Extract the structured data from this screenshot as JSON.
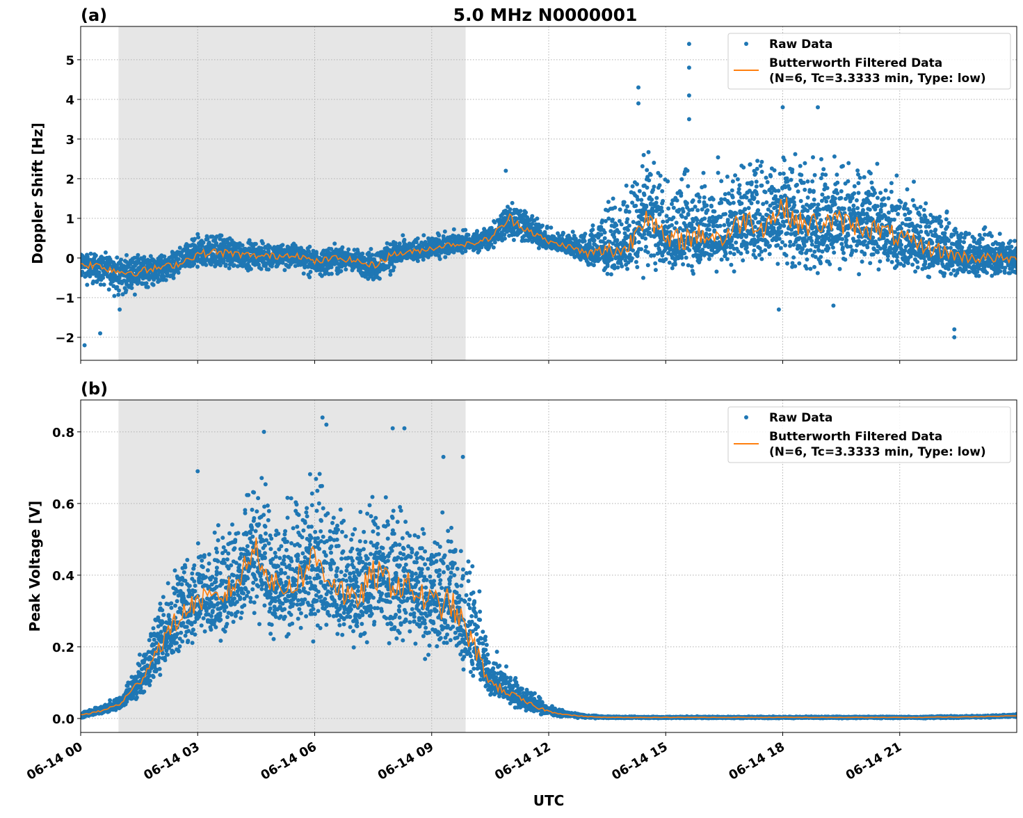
{
  "title": "5.0 MHz N0000001",
  "xlabel": "UTC",
  "colors": {
    "raw": "#1f77b4",
    "filtered": "#ff7f0e",
    "shade": "#e6e6e6",
    "grid": "#b0b0b0"
  },
  "chart_data": [
    {
      "type": "scatter+line",
      "panel_label": "(a)",
      "ylabel": "Doppler Shift [Hz]",
      "xlim_hours": [
        0,
        24
      ],
      "ylim": [
        -2.58,
        5.84
      ],
      "yticks": [
        -2,
        -1,
        0,
        1,
        2,
        3,
        4,
        5
      ],
      "ytick_labels": [
        "−2",
        "−1",
        "0",
        "1",
        "2",
        "3",
        "4",
        "5"
      ],
      "grid": true,
      "shaded_span_hours": [
        0.97,
        9.87
      ],
      "legend": {
        "placement": "top-right",
        "entries": [
          "Raw Data",
          "Butterworth Filtered Data\n(N=6, Tc=3.3333 min, Type: low)"
        ]
      },
      "x_hours": [
        0,
        0.5,
        1,
        1.5,
        2,
        2.5,
        3,
        3.5,
        4,
        4.5,
        5,
        5.5,
        6,
        6.5,
        7,
        7.5,
        8,
        8.5,
        9,
        9.5,
        10,
        10.5,
        11,
        11.5,
        12,
        12.5,
        13,
        13.5,
        14,
        14.5,
        15,
        15.5,
        16,
        16.5,
        17,
        17.5,
        18,
        18.5,
        19,
        19.5,
        20,
        20.5,
        21,
        21.5,
        22,
        22.5,
        23,
        23.5,
        24
      ],
      "series": [
        {
          "name": "Butterworth Filtered Data",
          "style": "line",
          "values": [
            -0.15,
            -0.2,
            -0.35,
            -0.35,
            -0.25,
            -0.15,
            0.1,
            0.15,
            0.1,
            0.05,
            0.05,
            0.1,
            -0.1,
            0.0,
            -0.05,
            -0.2,
            0.1,
            0.15,
            0.25,
            0.35,
            0.35,
            0.5,
            1.0,
            0.7,
            0.4,
            0.3,
            0.1,
            0.2,
            0.2,
            1.2,
            0.4,
            0.5,
            0.6,
            0.5,
            1.0,
            0.8,
            1.3,
            0.8,
            0.9,
            0.9,
            0.8,
            0.7,
            0.5,
            0.3,
            0.2,
            0.05,
            0.0,
            0.0,
            -0.05
          ]
        },
        {
          "name": "Raw Data",
          "style": "points",
          "envelope_low": [
            -0.8,
            -0.9,
            -1.1,
            -1.0,
            -0.8,
            -0.5,
            -0.4,
            -0.4,
            -0.4,
            -0.4,
            -0.5,
            -0.4,
            -0.6,
            -0.5,
            -0.5,
            -0.8,
            -0.4,
            -0.2,
            -0.1,
            0.0,
            0.1,
            0.1,
            0.3,
            0.2,
            0.1,
            0.0,
            -0.3,
            -0.5,
            -0.5,
            -0.6,
            -0.5,
            -0.6,
            -0.5,
            -0.5,
            -0.4,
            -0.3,
            -0.6,
            -0.6,
            -0.6,
            -0.6,
            -0.5,
            -0.5,
            -0.5,
            -0.6,
            -0.7,
            -0.6,
            -0.6,
            -0.6,
            -0.6
          ],
          "envelope_high": [
            0.3,
            0.2,
            0.1,
            0.2,
            0.2,
            0.4,
            0.7,
            0.8,
            0.6,
            0.5,
            0.5,
            0.5,
            0.3,
            0.4,
            0.3,
            0.3,
            0.6,
            0.6,
            0.7,
            0.8,
            0.8,
            0.9,
            1.8,
            1.3,
            0.8,
            0.8,
            0.9,
            1.8,
            2.4,
            3.0,
            2.6,
            2.8,
            2.8,
            2.8,
            3.2,
            3.0,
            3.3,
            3.0,
            3.0,
            2.8,
            2.7,
            2.5,
            2.4,
            2.0,
            1.6,
            1.2,
            1.0,
            0.8,
            0.6
          ],
          "outliers": [
            [
              0.1,
              -2.2
            ],
            [
              0.5,
              -1.9
            ],
            [
              1.0,
              -1.3
            ],
            [
              10.9,
              2.2
            ],
            [
              14.3,
              4.3
            ],
            [
              14.3,
              3.9
            ],
            [
              15.6,
              5.4
            ],
            [
              15.6,
              4.8
            ],
            [
              15.6,
              4.1
            ],
            [
              15.6,
              3.5
            ],
            [
              18.0,
              3.8
            ],
            [
              18.9,
              3.8
            ],
            [
              19.3,
              -1.2
            ],
            [
              22.4,
              -2.0
            ],
            [
              22.4,
              -1.8
            ],
            [
              17.9,
              -1.3
            ]
          ]
        }
      ]
    },
    {
      "type": "scatter+line",
      "panel_label": "(b)",
      "ylabel": "Peak Voltage [V]",
      "xlim_hours": [
        0,
        24
      ],
      "ylim": [
        -0.039,
        0.889
      ],
      "yticks": [
        0.0,
        0.2,
        0.4,
        0.6,
        0.8
      ],
      "ytick_labels": [
        "0.0",
        "0.2",
        "0.4",
        "0.6",
        "0.8"
      ],
      "grid": true,
      "shaded_span_hours": [
        0.97,
        9.87
      ],
      "legend": {
        "placement": "top-right",
        "entries": [
          "Raw Data",
          "Butterworth Filtered Data\n(N=6, Tc=3.3333 min, Type: low)"
        ]
      },
      "x_hours": [
        0,
        0.5,
        1,
        1.5,
        2,
        2.5,
        3,
        3.5,
        4,
        4.5,
        5,
        5.5,
        6,
        6.5,
        7,
        7.5,
        8,
        8.5,
        9,
        9.5,
        10,
        10.5,
        11,
        11.5,
        12,
        12.5,
        13,
        13.5,
        14,
        14.5,
        15,
        15.5,
        16,
        16.5,
        17,
        17.5,
        18,
        18.5,
        19,
        19.5,
        20,
        20.5,
        21,
        21.5,
        22,
        22.5,
        23,
        23.5,
        24
      ],
      "series": [
        {
          "name": "Butterworth Filtered Data",
          "style": "line",
          "values": [
            0.01,
            0.02,
            0.04,
            0.1,
            0.2,
            0.28,
            0.33,
            0.33,
            0.38,
            0.48,
            0.36,
            0.38,
            0.45,
            0.38,
            0.32,
            0.4,
            0.38,
            0.36,
            0.32,
            0.32,
            0.22,
            0.1,
            0.07,
            0.04,
            0.02,
            0.01,
            0.005,
            0.003,
            0.003,
            0.003,
            0.003,
            0.003,
            0.003,
            0.003,
            0.003,
            0.003,
            0.003,
            0.003,
            0.003,
            0.003,
            0.003,
            0.003,
            0.003,
            0.003,
            0.004,
            0.004,
            0.005,
            0.006,
            0.008
          ]
        },
        {
          "name": "Raw Data",
          "style": "points",
          "envelope_low": [
            0.0,
            0.01,
            0.02,
            0.05,
            0.1,
            0.16,
            0.2,
            0.18,
            0.22,
            0.25,
            0.15,
            0.2,
            0.18,
            0.2,
            0.15,
            0.18,
            0.16,
            0.15,
            0.13,
            0.15,
            0.08,
            0.05,
            0.03,
            0.01,
            0.005,
            0.002,
            0.0,
            0.0,
            0.0,
            0.0,
            0.0,
            0.0,
            0.0,
            0.0,
            0.0,
            0.0,
            0.0,
            0.0,
            0.0,
            0.0,
            0.0,
            0.0,
            0.0,
            0.0,
            0.0,
            0.0,
            0.001,
            0.002,
            0.003
          ],
          "envelope_high": [
            0.02,
            0.04,
            0.07,
            0.2,
            0.38,
            0.5,
            0.55,
            0.58,
            0.65,
            0.75,
            0.68,
            0.68,
            0.8,
            0.72,
            0.58,
            0.68,
            0.68,
            0.65,
            0.62,
            0.65,
            0.5,
            0.22,
            0.15,
            0.09,
            0.04,
            0.02,
            0.01,
            0.007,
            0.006,
            0.006,
            0.006,
            0.006,
            0.006,
            0.006,
            0.006,
            0.006,
            0.006,
            0.006,
            0.006,
            0.006,
            0.006,
            0.006,
            0.006,
            0.006,
            0.007,
            0.008,
            0.009,
            0.011,
            0.013
          ],
          "outliers": [
            [
              3.0,
              0.69
            ],
            [
              4.7,
              0.8
            ],
            [
              6.2,
              0.84
            ],
            [
              6.3,
              0.82
            ],
            [
              8.0,
              0.81
            ],
            [
              8.3,
              0.81
            ],
            [
              9.3,
              0.73
            ],
            [
              9.8,
              0.73
            ]
          ]
        }
      ]
    }
  ]
}
